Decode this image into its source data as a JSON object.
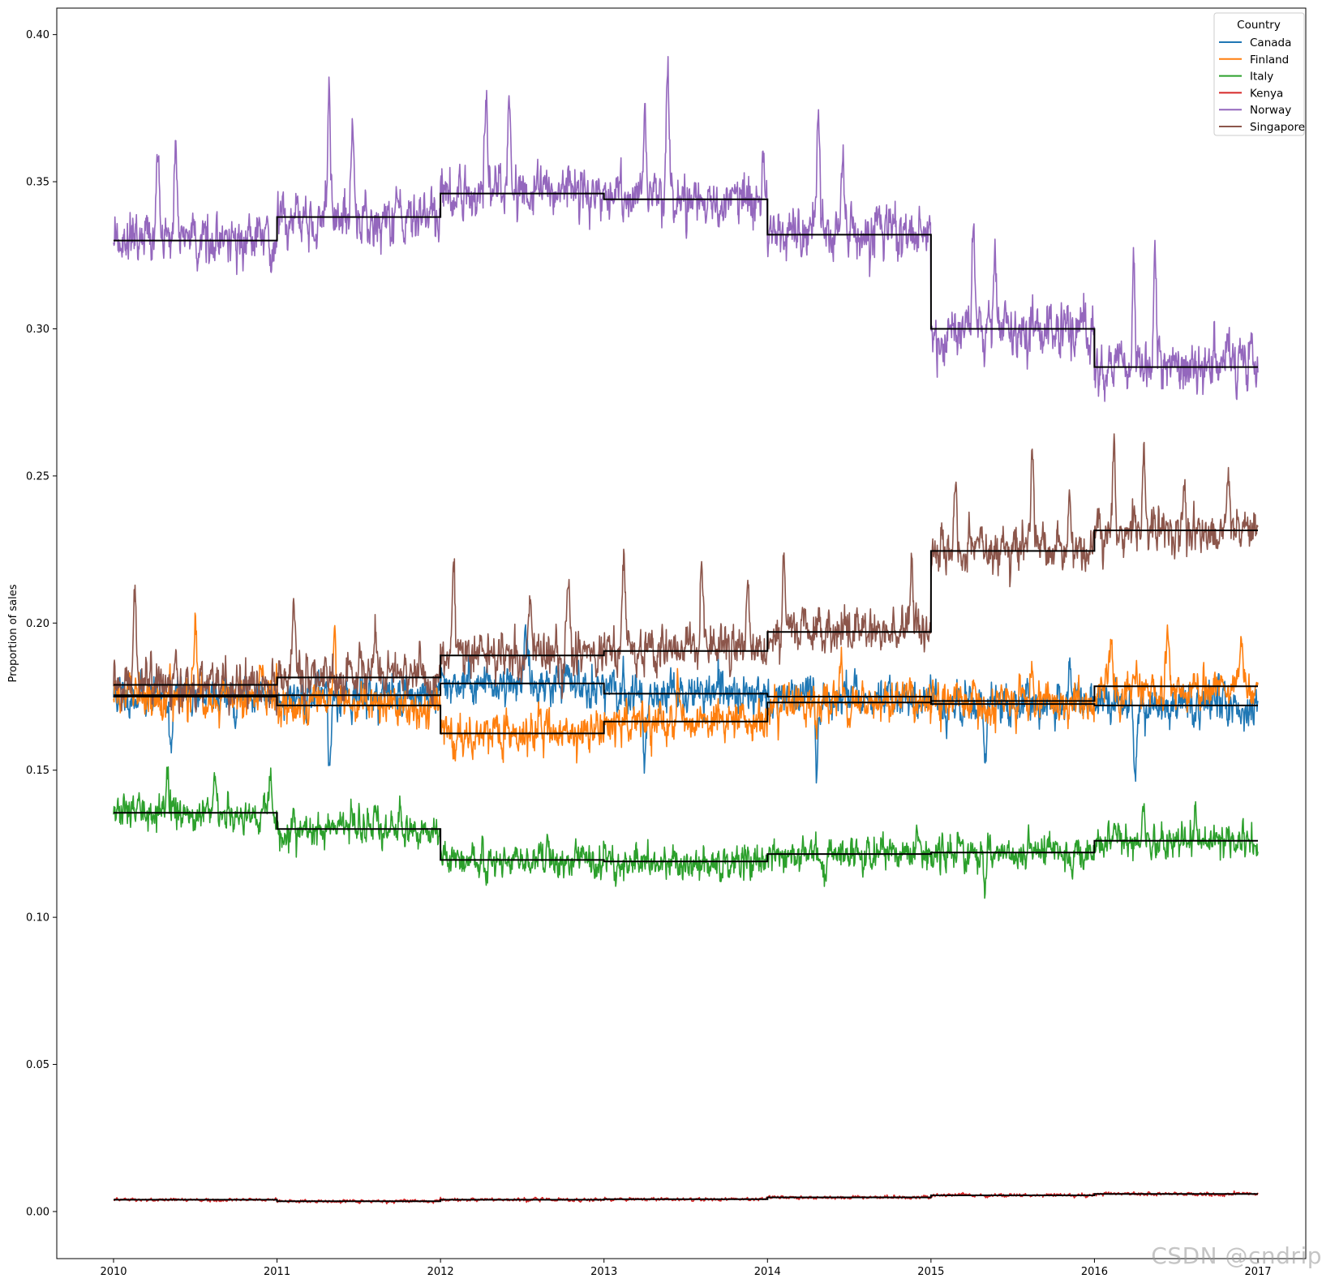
{
  "chart_data": {
    "type": "line",
    "title": "",
    "xlabel": "",
    "ylabel": "Proportion of sales",
    "x_range": [
      2010,
      2017
    ],
    "ylim": [
      -0.016,
      0.409
    ],
    "x_ticks": [
      "2010",
      "2011",
      "2012",
      "2013",
      "2014",
      "2015",
      "2016",
      "2017"
    ],
    "y_ticks": [
      "0.00",
      "0.05",
      "0.10",
      "0.15",
      "0.20",
      "0.25",
      "0.30",
      "0.35",
      "0.40"
    ],
    "grid": false,
    "legend": {
      "title": "Country",
      "position": "top-right"
    },
    "series": [
      {
        "name": "Canada",
        "color": "#1f77b4",
        "yearly_means": [
          0.1755,
          0.1755,
          0.1795,
          0.176,
          0.175,
          0.1725,
          0.172
        ],
        "noise": 0.0035,
        "seed": 11,
        "spikes": [
          [
            2010.35,
            -0.017
          ],
          [
            2010.75,
            -0.012
          ],
          [
            2011.32,
            -0.027
          ],
          [
            2012.52,
            0.021
          ],
          [
            2013.25,
            -0.022
          ],
          [
            2014.3,
            -0.027
          ],
          [
            2015.33,
            -0.02
          ],
          [
            2015.85,
            0.013
          ],
          [
            2016.25,
            -0.025
          ]
        ]
      },
      {
        "name": "Finland",
        "color": "#ff7f0e",
        "yearly_means": [
          0.175,
          0.172,
          0.1625,
          0.1665,
          0.173,
          0.1735,
          0.1785
        ],
        "noise": 0.0035,
        "seed": 22,
        "spikes": [
          [
            2010.5,
            0.022
          ],
          [
            2010.9,
            0.012
          ],
          [
            2011.35,
            0.022
          ],
          [
            2012.6,
            0.012
          ],
          [
            2013.45,
            0.012
          ],
          [
            2014.45,
            0.013
          ],
          [
            2015.62,
            0.012
          ],
          [
            2016.1,
            0.012
          ],
          [
            2016.45,
            0.021
          ],
          [
            2016.9,
            0.014
          ]
        ]
      },
      {
        "name": "Italy",
        "color": "#2ca02c",
        "yearly_means": [
          0.1355,
          0.13,
          0.1195,
          0.119,
          0.1215,
          0.122,
          0.126
        ],
        "noise": 0.003,
        "seed": 33,
        "spikes": [
          [
            2010.33,
            0.012
          ],
          [
            2010.62,
            0.012
          ],
          [
            2010.96,
            0.013
          ],
          [
            2011.6,
            0.011
          ],
          [
            2012.28,
            -0.011
          ],
          [
            2014.35,
            -0.011
          ],
          [
            2014.92,
            0.01
          ],
          [
            2015.33,
            -0.011
          ],
          [
            2016.3,
            0.011
          ],
          [
            2016.62,
            0.012
          ]
        ]
      },
      {
        "name": "Kenya",
        "color": "#d62728",
        "yearly_means": [
          0.004,
          0.0035,
          0.004,
          0.0042,
          0.0048,
          0.0055,
          0.006
        ],
        "noise": 0.0003,
        "seed": 44,
        "spikes": []
      },
      {
        "name": "Norway",
        "color": "#9467bd",
        "yearly_means": [
          0.33,
          0.338,
          0.346,
          0.344,
          0.332,
          0.3,
          0.287
        ],
        "noise": 0.0045,
        "seed": 55,
        "spikes": [
          [
            2010.27,
            0.033
          ],
          [
            2010.38,
            0.028
          ],
          [
            2011.32,
            0.044
          ],
          [
            2011.46,
            0.032
          ],
          [
            2012.28,
            0.036
          ],
          [
            2012.42,
            0.03
          ],
          [
            2013.25,
            0.034
          ],
          [
            2013.39,
            0.045
          ],
          [
            2014.31,
            0.036
          ],
          [
            2014.46,
            0.03
          ],
          [
            2015.26,
            0.037
          ],
          [
            2015.39,
            0.029
          ],
          [
            2016.24,
            0.034
          ],
          [
            2016.37,
            0.042
          ]
        ]
      },
      {
        "name": "Singapore",
        "color": "#8c564b",
        "yearly_means": [
          0.179,
          0.1815,
          0.189,
          0.1905,
          0.197,
          0.2245,
          0.2315
        ],
        "noise": 0.004,
        "seed": 66,
        "spikes": [
          [
            2010.13,
            0.03
          ],
          [
            2011.1,
            0.024
          ],
          [
            2011.6,
            0.016
          ],
          [
            2012.08,
            0.031
          ],
          [
            2012.55,
            0.024
          ],
          [
            2012.78,
            0.028
          ],
          [
            2013.12,
            0.036
          ],
          [
            2013.6,
            0.026
          ],
          [
            2013.88,
            0.024
          ],
          [
            2014.1,
            0.025
          ],
          [
            2014.88,
            0.023
          ],
          [
            2015.15,
            0.028
          ],
          [
            2015.62,
            0.031
          ],
          [
            2015.85,
            0.016
          ],
          [
            2016.12,
            0.033
          ],
          [
            2016.3,
            0.022
          ],
          [
            2016.55,
            0.022
          ],
          [
            2016.82,
            0.022
          ]
        ]
      }
    ],
    "step_lines": {
      "color": "#000000",
      "description": "yearly mean per country"
    }
  },
  "watermark": "CSDN @cndrip"
}
